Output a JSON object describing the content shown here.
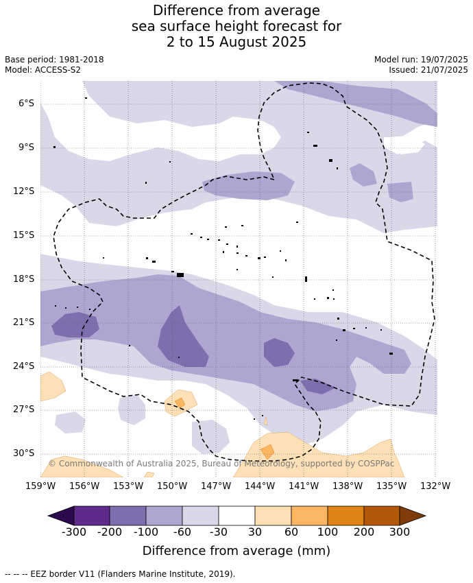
{
  "title": {
    "line1": "Difference from average",
    "line2": "sea surface height forecast for",
    "line3": "2 to 15 August 2025"
  },
  "meta": {
    "base_period": "Base period: 1981-2018",
    "model": "Model: ACCESS-S2",
    "model_run": "Model run: 19/07/2025",
    "issued": "Issued: 21/07/2025"
  },
  "axes": {
    "lat_labels": [
      "6°S",
      "9°S",
      "12°S",
      "15°S",
      "18°S",
      "21°S",
      "24°S",
      "27°S",
      "30°S"
    ],
    "lon_labels": [
      "159°W",
      "156°W",
      "153°W",
      "150°W",
      "147°W",
      "144°W",
      "141°W",
      "138°W",
      "135°W",
      "132°W"
    ]
  },
  "copyright": "© Commonwealth of Australia 2025, Bureau of Meteorology, supported by COSPPac",
  "colorbar": {
    "title": "Difference from average (mm)",
    "labels": [
      "-300",
      "-200",
      "-100",
      "-60",
      "-30",
      "30",
      "60",
      "100",
      "200",
      "300"
    ],
    "colors": [
      "#2d0a4e",
      "#5e2a8c",
      "#7e6eae",
      "#aea6d0",
      "#d8d8e9",
      "#ffffff",
      "#fee0b6",
      "#fbb661",
      "#e08214",
      "#b35806",
      "#7f3b08"
    ]
  },
  "footnote": "--  --  -- EEZ border V11 (Flanders Marine Institute, 2019)."
}
